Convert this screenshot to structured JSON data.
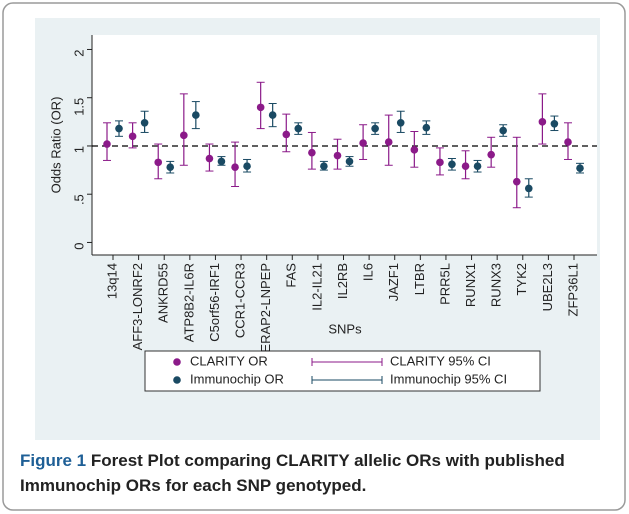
{
  "chart_data": {
    "type": "forest",
    "y_label": "Odds Ratio (OR)",
    "x_label": "SNPs",
    "categories": [
      "13q14",
      "AFF3-LONRF2",
      "ANKRD55",
      "ATP8B2-IL6R",
      "C5orf56-IRF1",
      "CCR1-CCR3",
      "ERAP2-LNPEP",
      "FAS",
      "IL2-IL21",
      "IL2RB",
      "IL6",
      "JAZF1",
      "LTBR",
      "PRR5L",
      "RUNX1",
      "RUNX3",
      "TYK2",
      "UBE2L3",
      "ZFP36L1"
    ],
    "series": [
      {
        "name": "CLARITY OR",
        "ci_name": "CLARITY 95% CI",
        "color": "#8b1a89",
        "values": [
          1.02,
          1.1,
          0.83,
          1.11,
          0.87,
          0.78,
          1.4,
          1.12,
          0.93,
          0.9,
          1.03,
          1.04,
          0.96,
          0.83,
          0.79,
          0.91,
          0.63,
          1.25,
          1.04
        ],
        "lower": [
          0.85,
          0.98,
          0.66,
          0.8,
          0.74,
          0.58,
          1.18,
          0.94,
          0.76,
          0.76,
          0.86,
          0.8,
          0.78,
          0.7,
          0.66,
          0.78,
          0.36,
          1.02,
          0.86
        ],
        "upper": [
          1.24,
          1.24,
          1.02,
          1.54,
          1.02,
          1.04,
          1.66,
          1.33,
          1.14,
          1.07,
          1.22,
          1.32,
          1.15,
          0.98,
          0.95,
          1.09,
          1.09,
          1.54,
          1.24
        ]
      },
      {
        "name": "Immunochip OR",
        "ci_name": "Immunochip 95% CI",
        "color": "#1a4a63",
        "values": [
          1.18,
          1.24,
          0.78,
          1.32,
          0.84,
          0.79,
          1.32,
          1.18,
          0.79,
          0.84,
          1.18,
          1.24,
          1.19,
          0.81,
          0.79,
          1.16,
          0.56,
          1.23,
          0.77
        ],
        "lower": [
          1.1,
          1.14,
          0.72,
          1.18,
          0.8,
          0.73,
          1.2,
          1.12,
          0.75,
          0.79,
          1.12,
          1.14,
          1.12,
          0.75,
          0.73,
          1.1,
          0.47,
          1.16,
          0.72
        ],
        "upper": [
          1.26,
          1.36,
          0.84,
          1.46,
          0.89,
          0.86,
          1.44,
          1.24,
          0.84,
          0.89,
          1.24,
          1.36,
          1.26,
          0.87,
          0.85,
          1.22,
          0.66,
          1.31,
          0.82
        ]
      }
    ],
    "ylim": [
      -0.13,
      2.15
    ],
    "yticks": [
      0,
      {
        "value": 0.5,
        "label": ".5"
      },
      1,
      1.5,
      2
    ],
    "reference_line": 1,
    "caption_label": "Figure 1",
    "caption": "Forest Plot comparing CLARITY allelic ORs with published Immunochip ORs for each SNP genotyped."
  }
}
